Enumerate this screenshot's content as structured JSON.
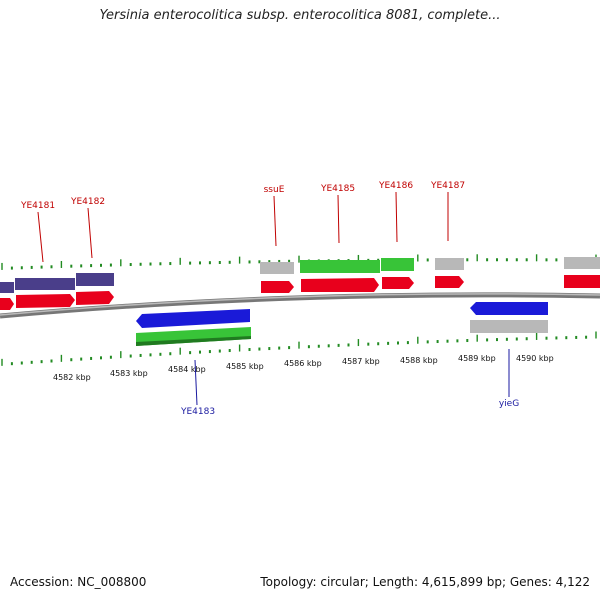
{
  "title": "Yersinia enterocolitica subsp. enterocolitica 8081, complete...",
  "footer": {
    "accession": "Accession: NC_008800",
    "summary": "Topology: circular; Length: 4,615,899 bp; Genes: 4,122"
  },
  "colors": {
    "forward_label": "#c00000",
    "reverse_label": "#1a1aa0",
    "backbone": "#888888",
    "tick": "#228b22",
    "red": "#e8001c",
    "blue": "#1a1ad8",
    "green": "#35c135",
    "purple": "#4a3e8a",
    "grey": "#b4b4b4"
  },
  "scale_labels": [
    "4582 kbp",
    "4583 kbp",
    "4584 kbp",
    "4585 kbp",
    "4586 kbp",
    "4587 kbp",
    "4588 kbp",
    "4589 kbp",
    "4590 kbp"
  ],
  "gene_labels": [
    {
      "text": "YE4181",
      "strand": "forward"
    },
    {
      "text": "YE4182",
      "strand": "forward"
    },
    {
      "text": "ssuE",
      "strand": "forward"
    },
    {
      "text": "YE4185",
      "strand": "forward"
    },
    {
      "text": "YE4186",
      "strand": "forward"
    },
    {
      "text": "YE4187",
      "strand": "forward"
    },
    {
      "text": "YE4183",
      "strand": "reverse"
    },
    {
      "text": "yieG",
      "strand": "reverse"
    }
  ]
}
